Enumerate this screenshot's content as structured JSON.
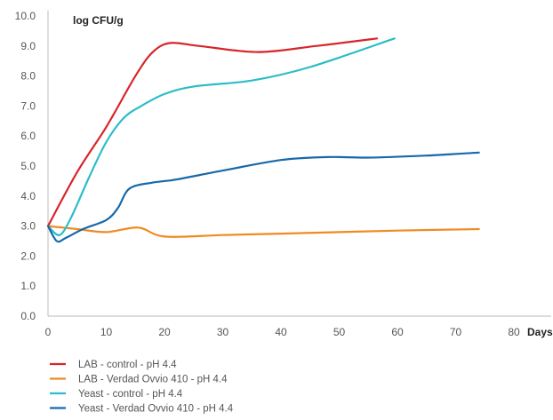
{
  "chart_data": {
    "type": "line",
    "ylabel": "log CFU/g",
    "xlabel": "Days",
    "xlim": [
      0,
      80
    ],
    "ylim": [
      0,
      10
    ],
    "x_ticks": [
      "0",
      "10",
      "20",
      "30",
      "40",
      "50",
      "60",
      "70",
      "80"
    ],
    "y_ticks": [
      "0.0",
      "1.0",
      "2.0",
      "3.0",
      "4.0",
      "5.0",
      "6.0",
      "7.0",
      "8.0",
      "9.0",
      "10.0"
    ],
    "grid": false,
    "legend_position": "bottom-left",
    "series": [
      {
        "name": "LAB - control - pH 4.4",
        "color": "#d7262b",
        "x": [
          0,
          5,
          10,
          15,
          18,
          21,
          26,
          36,
          46,
          56.5
        ],
        "y": [
          3.0,
          4.8,
          6.3,
          8.0,
          8.8,
          9.1,
          9.0,
          8.8,
          9.0,
          9.25
        ]
      },
      {
        "name": "LAB - Verdad Ovvio 410 - pH 4.4",
        "color": "#f08a24",
        "x": [
          0,
          5,
          10,
          15.5,
          20,
          30,
          40,
          50,
          60,
          74
        ],
        "y": [
          3.0,
          2.9,
          2.8,
          2.95,
          2.65,
          2.7,
          2.75,
          2.8,
          2.85,
          2.9
        ]
      },
      {
        "name": "Yeast - control - pH 4.4",
        "color": "#2bbdc8",
        "x": [
          0,
          2,
          4,
          7,
          10,
          13,
          16,
          20,
          25,
          35,
          45,
          59.5
        ],
        "y": [
          3.0,
          2.7,
          3.3,
          4.6,
          5.8,
          6.6,
          7.0,
          7.4,
          7.65,
          7.85,
          8.3,
          9.25
        ]
      },
      {
        "name": "Yeast - Verdad Ovvio 410 - pH 4.4",
        "color": "#1769aa",
        "x": [
          0,
          1.5,
          3,
          6,
          10,
          12,
          14,
          18,
          22,
          30,
          40,
          48,
          55,
          65,
          74
        ],
        "y": [
          3.0,
          2.5,
          2.6,
          2.9,
          3.2,
          3.6,
          4.25,
          4.45,
          4.55,
          4.85,
          5.2,
          5.3,
          5.28,
          5.35,
          5.45
        ]
      }
    ]
  }
}
